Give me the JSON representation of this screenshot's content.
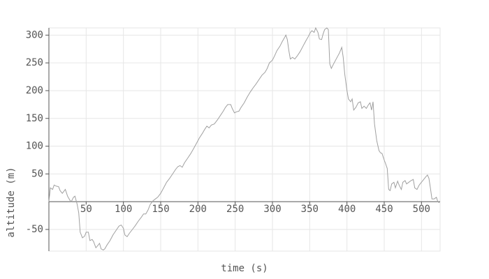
{
  "chart_data": {
    "type": "line",
    "x_label": "time (s)",
    "y_label": "altitude (m)",
    "xlim": [
      0,
      525
    ],
    "ylim": [
      -89,
      313
    ],
    "xticks": [
      50,
      100,
      150,
      200,
      250,
      300,
      350,
      400,
      450,
      500
    ],
    "yticks": [
      -50,
      50,
      100,
      150,
      200,
      250,
      300
    ],
    "grid": true,
    "series": [
      {
        "color": "#a0a0a0",
        "x": [
          0,
          2,
          5,
          7,
          10,
          13,
          15,
          18,
          22,
          25,
          28,
          30,
          33,
          35,
          38,
          40,
          42,
          45,
          48,
          50,
          53,
          55,
          58,
          60,
          63,
          65,
          68,
          70,
          73,
          75,
          78,
          82,
          86,
          90,
          94,
          97,
          100,
          102,
          105,
          108,
          112,
          116,
          120,
          124,
          127,
          130,
          133,
          136,
          140,
          143,
          146,
          150,
          154,
          158,
          162,
          166,
          170,
          173,
          176,
          179,
          182,
          186,
          190,
          194,
          198,
          202,
          206,
          209,
          212,
          215,
          218,
          222,
          226,
          230,
          234,
          237,
          240,
          244,
          246,
          249,
          252,
          255,
          258,
          262,
          266,
          270,
          274,
          278,
          282,
          286,
          290,
          293,
          296,
          300,
          303,
          306,
          310,
          313,
          316,
          318,
          320,
          322,
          324,
          327,
          330,
          333,
          337,
          341,
          345,
          348,
          351,
          353,
          356,
          358,
          361,
          363,
          366,
          368,
          370,
          373,
          375,
          377,
          379,
          382,
          386,
          390,
          393,
          395,
          397,
          400,
          402,
          405,
          407,
          409,
          412,
          415,
          418,
          420,
          423,
          426,
          429,
          431,
          433,
          435,
          437,
          440,
          443,
          445,
          447,
          450,
          452,
          454,
          456,
          458,
          460,
          463,
          465,
          468,
          470,
          473,
          475,
          478,
          480,
          483,
          486,
          489,
          491,
          494,
          497,
          500,
          503,
          506,
          508,
          510,
          512,
          514,
          517,
          520,
          522,
          524
        ],
        "values": [
          0,
          25,
          22,
          30,
          28,
          27,
          20,
          15,
          22,
          10,
          3,
          0,
          8,
          10,
          -5,
          -20,
          -55,
          -65,
          -62,
          -55,
          -55,
          -70,
          -68,
          -72,
          -83,
          -80,
          -75,
          -85,
          -87,
          -85,
          -78,
          -70,
          -60,
          -52,
          -44,
          -42,
          -48,
          -60,
          -63,
          -57,
          -50,
          -43,
          -35,
          -28,
          -22,
          -22,
          -15,
          -5,
          2,
          5,
          8,
          15,
          25,
          35,
          42,
          50,
          58,
          63,
          65,
          62,
          70,
          78,
          86,
          95,
          105,
          115,
          123,
          130,
          136,
          133,
          138,
          140,
          147,
          155,
          163,
          170,
          175,
          175,
          168,
          160,
          162,
          163,
          170,
          178,
          188,
          197,
          205,
          212,
          220,
          228,
          233,
          240,
          250,
          255,
          263,
          272,
          280,
          288,
          295,
          300,
          292,
          272,
          257,
          260,
          257,
          262,
          270,
          280,
          290,
          297,
          305,
          308,
          305,
          313,
          305,
          293,
          292,
          302,
          310,
          313,
          310,
          248,
          240,
          248,
          258,
          268,
          278,
          260,
          230,
          200,
          185,
          180,
          185,
          165,
          170,
          178,
          180,
          168,
          172,
          168,
          175,
          178,
          165,
          180,
          140,
          110,
          92,
          88,
          87,
          75,
          68,
          60,
          22,
          20,
          32,
          35,
          25,
          37,
          30,
          22,
          35,
          38,
          32,
          35,
          38,
          40,
          25,
          22,
          30,
          35,
          40,
          45,
          48,
          42,
          25,
          5,
          5,
          8,
          0,
          -2
        ]
      }
    ]
  }
}
